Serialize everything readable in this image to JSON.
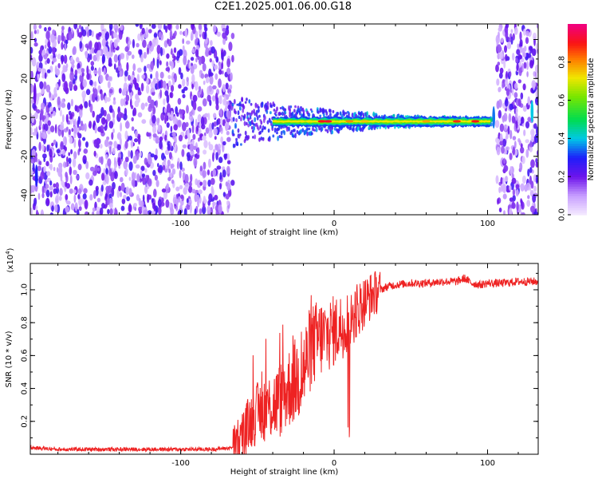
{
  "title": "C2E1.2025.001.06.00.G18",
  "colors": {
    "trace": "#ee2222",
    "axis": "#000000"
  },
  "chart_data": [
    {
      "type": "heatmap",
      "xlabel": "Height of straight line (km)",
      "ylabel": "Frequency (Hz)",
      "xlim": [
        -198,
        133
      ],
      "ylim": [
        -50,
        48
      ],
      "xticks": [
        -100,
        0,
        100
      ],
      "yticks": [
        40,
        20,
        0,
        -20,
        -40
      ],
      "ytick_labels": [
        "40",
        "20",
        "0",
        "-20",
        "-40"
      ],
      "colorbar": {
        "label": "Normalized spectral amplitude",
        "range": [
          0,
          1
        ],
        "ticks": [
          "0.0",
          "0.2",
          "0.4",
          "0.6",
          "0.8"
        ],
        "colormap": "rainbow (white-violet-blue-cyan-green-yellow-red-magenta)"
      },
      "features": {
        "noise_left_x": [
          -198,
          -66
        ],
        "signal_band_x": [
          -66,
          103
        ],
        "noise_right_x": [
          106,
          133
        ],
        "signal_center_freq_hz": -2
      }
    },
    {
      "type": "line",
      "xlabel": "Height of straight line (km)",
      "ylabel": "SNR (10 * v/v)",
      "scale_note": "(x10",
      "scale_exp": "4",
      "scale_close": ")",
      "xlim": [
        -198,
        133
      ],
      "ylim": [
        0,
        1.16
      ],
      "xticks": [
        -100,
        0,
        100
      ],
      "yticks": [
        0.2,
        0.4,
        0.6,
        0.8,
        1.0
      ],
      "ytick_labels": [
        "0.2",
        "0.4",
        "0.6",
        "0.8",
        "1.0"
      ],
      "series": [
        {
          "x": [
            -198,
            -180,
            -160,
            -140,
            -120,
            -100,
            -80,
            -66,
            -60,
            -55,
            -50,
            -45,
            -40,
            -35,
            -30,
            -25,
            -20,
            -17,
            -15,
            -10,
            -5,
            0,
            5,
            10,
            15,
            20,
            25,
            30,
            35,
            40,
            50,
            60,
            70,
            80,
            85,
            88,
            90,
            95,
            100,
            110,
            120,
            133
          ],
          "y": [
            0.04,
            0.03,
            0.03,
            0.03,
            0.03,
            0.03,
            0.03,
            0.04,
            0.1,
            0.2,
            0.25,
            0.28,
            0.3,
            0.33,
            0.4,
            0.45,
            0.5,
            0.6,
            0.65,
            0.7,
            0.72,
            0.75,
            0.78,
            0.82,
            0.88,
            0.93,
            0.97,
            1.0,
            1.02,
            1.03,
            1.04,
            1.04,
            1.05,
            1.05,
            1.07,
            1.05,
            1.04,
            1.03,
            1.04,
            1.04,
            1.05,
            1.05
          ]
        }
      ]
    }
  ]
}
